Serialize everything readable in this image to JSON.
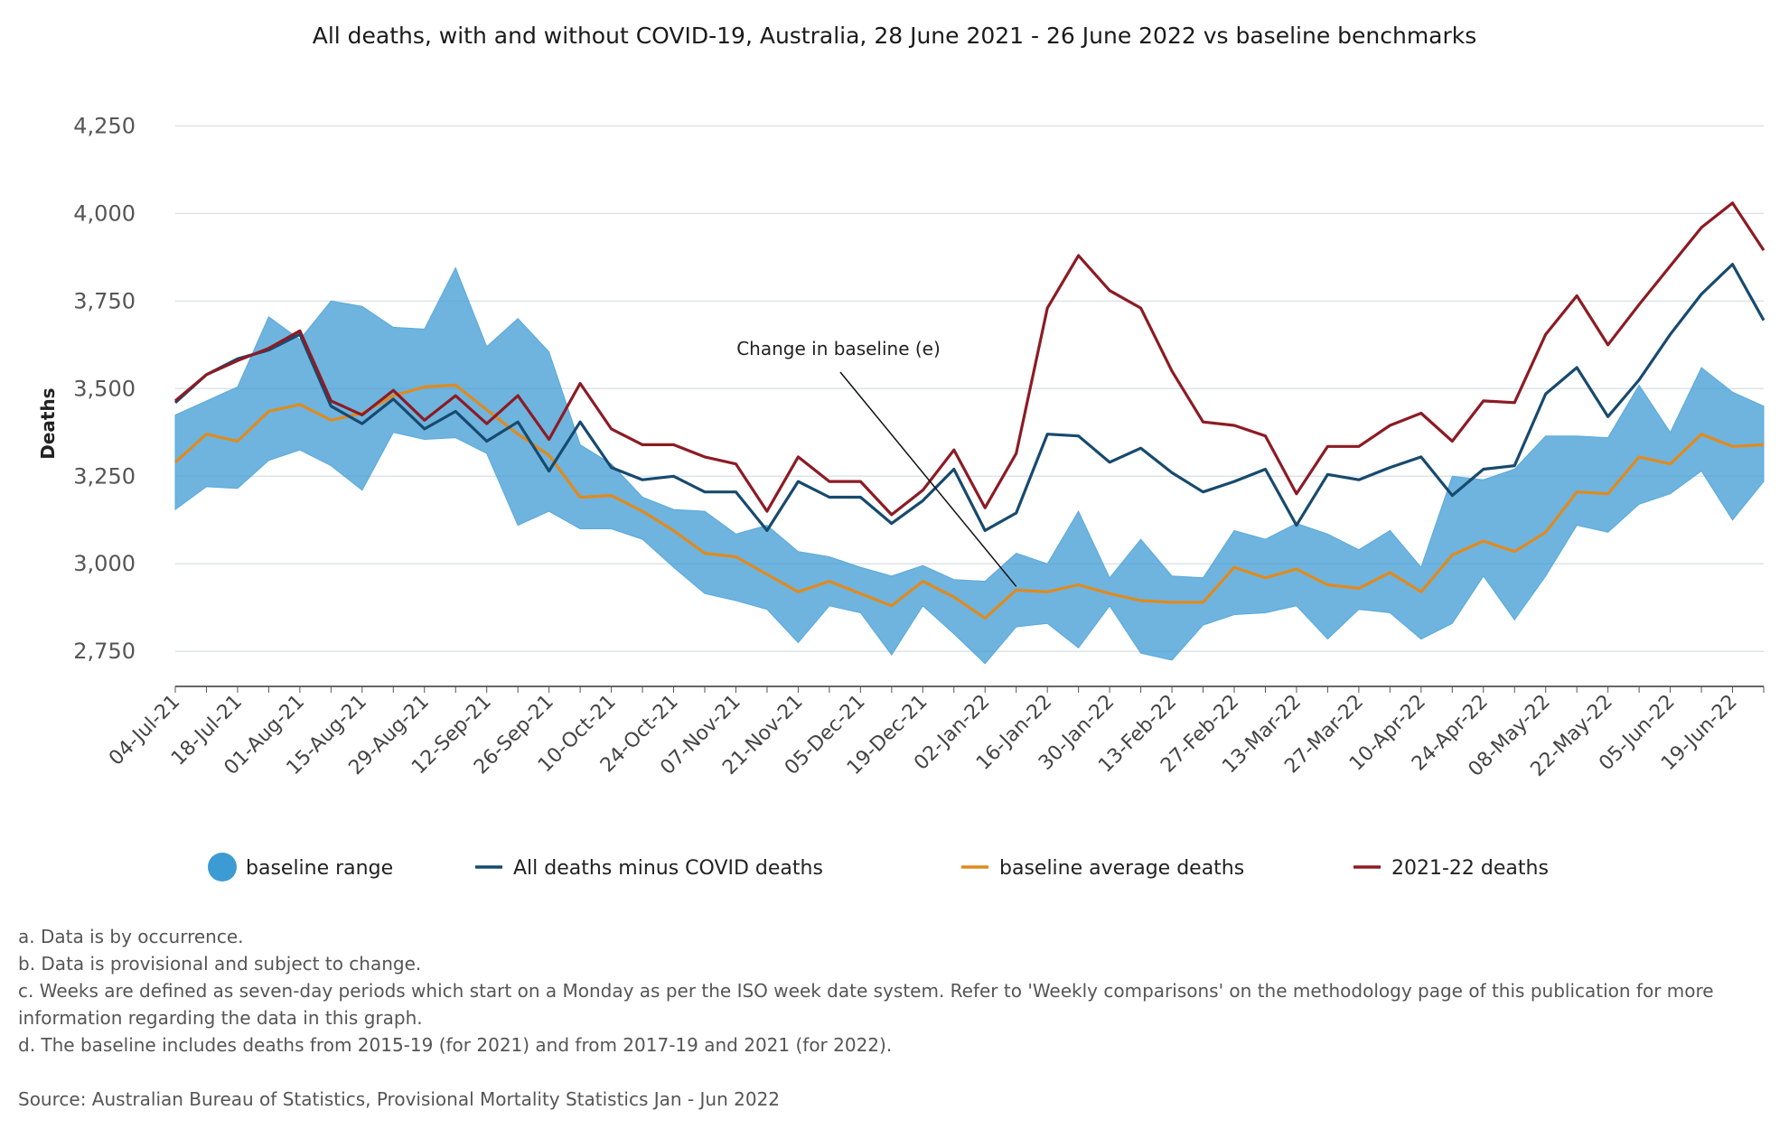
{
  "chart_data": {
    "type": "line",
    "title": "All deaths, with and without COVID-19, Australia, 28 June 2021 - 26 June 2022 vs baseline benchmarks",
    "ylabel": "Deaths",
    "ylim": [
      2650,
      4300
    ],
    "yticks": [
      2750,
      3000,
      3250,
      3500,
      3750,
      4000,
      4250
    ],
    "ytick_labels": [
      "2,750",
      "3,000",
      "3,250",
      "3,500",
      "3,750",
      "4,000",
      "4,250"
    ],
    "grid": true,
    "legend_position": "bottom",
    "x": [
      "04-Jul-21",
      "11-Jul-21",
      "18-Jul-21",
      "25-Jul-21",
      "01-Aug-21",
      "08-Aug-21",
      "15-Aug-21",
      "22-Aug-21",
      "29-Aug-21",
      "05-Sep-21",
      "12-Sep-21",
      "19-Sep-21",
      "26-Sep-21",
      "03-Oct-21",
      "10-Oct-21",
      "17-Oct-21",
      "24-Oct-21",
      "31-Oct-21",
      "07-Nov-21",
      "14-Nov-21",
      "21-Nov-21",
      "28-Nov-21",
      "05-Dec-21",
      "12-Dec-21",
      "19-Dec-21",
      "26-Dec-21",
      "02-Jan-22",
      "09-Jan-22",
      "16-Jan-22",
      "23-Jan-22",
      "30-Jan-22",
      "06-Feb-22",
      "13-Feb-22",
      "20-Feb-22",
      "27-Feb-22",
      "06-Mar-22",
      "13-Mar-22",
      "20-Mar-22",
      "27-Mar-22",
      "03-Apr-22",
      "10-Apr-22",
      "17-Apr-22",
      "24-Apr-22",
      "01-May-22",
      "08-May-22",
      "15-May-22",
      "22-May-22",
      "29-May-22",
      "05-Jun-22",
      "12-Jun-22",
      "19-Jun-22",
      "26-Jun-22"
    ],
    "x_tick_labels": [
      "04-Jul-21",
      "18-Jul-21",
      "01-Aug-21",
      "15-Aug-21",
      "29-Aug-21",
      "12-Sep-21",
      "26-Sep-21",
      "10-Oct-21",
      "24-Oct-21",
      "07-Nov-21",
      "21-Nov-21",
      "05-Dec-21",
      "19-Dec-21",
      "02-Jan-22",
      "16-Jan-22",
      "30-Jan-22",
      "13-Feb-22",
      "27-Feb-22",
      "13-Mar-22",
      "27-Mar-22",
      "10-Apr-22",
      "24-Apr-22",
      "08-May-22",
      "22-May-22",
      "05-Jun-22",
      "19-Jun-22"
    ],
    "range": {
      "name": "baseline range",
      "color": "#3d9bd4",
      "upper": [
        3425,
        3465,
        3505,
        3705,
        3640,
        3750,
        3735,
        3675,
        3670,
        3845,
        3620,
        3700,
        3605,
        3340,
        3285,
        3190,
        3155,
        3150,
        3085,
        3110,
        3035,
        3020,
        2990,
        2965,
        2995,
        2955,
        2950,
        3030,
        3000,
        3150,
        2960,
        3070,
        2965,
        2960,
        3095,
        3070,
        3115,
        3085,
        3040,
        3095,
        2990,
        3250,
        3240,
        3270,
        3365,
        3365,
        3360,
        3510,
        3375,
        3560,
        3490,
        3450
      ],
      "lower": [
        3155,
        3220,
        3215,
        3295,
        3325,
        3280,
        3210,
        3375,
        3355,
        3360,
        3315,
        3110,
        3150,
        3100,
        3100,
        3070,
        2990,
        2915,
        2895,
        2870,
        2775,
        2880,
        2860,
        2740,
        2880,
        2800,
        2715,
        2820,
        2830,
        2760,
        2880,
        2745,
        2725,
        2825,
        2855,
        2860,
        2880,
        2785,
        2870,
        2860,
        2785,
        2830,
        2965,
        2840,
        2965,
        3110,
        3090,
        3170,
        3200,
        3265,
        3125,
        3235
      ]
    },
    "series": [
      {
        "name": "All deaths minus COVID deaths",
        "color": "#174a6e",
        "values": [
          3460,
          3540,
          3585,
          3610,
          3655,
          3450,
          3400,
          3470,
          3385,
          3435,
          3350,
          3405,
          3265,
          3405,
          3275,
          3240,
          3250,
          3205,
          3205,
          3095,
          3235,
          3190,
          3190,
          3115,
          3180,
          3270,
          3095,
          3145,
          3370,
          3365,
          3290,
          3330,
          3260,
          3205,
          3235,
          3270,
          3110,
          3255,
          3240,
          3275,
          3305,
          3195,
          3270,
          3280,
          3485,
          3560,
          3420,
          3525,
          3655,
          3770,
          3855,
          3695
        ]
      },
      {
        "name": "baseline average deaths",
        "color": "#e08a1e",
        "values": [
          3290,
          3370,
          3350,
          3435,
          3455,
          3410,
          3430,
          3480,
          3505,
          3510,
          3440,
          3370,
          3310,
          3190,
          3195,
          3150,
          3095,
          3030,
          3020,
          2970,
          2920,
          2950,
          2915,
          2880,
          2950,
          2905,
          2845,
          2925,
          2920,
          2940,
          2915,
          2895,
          2890,
          2890,
          2990,
          2960,
          2985,
          2940,
          2930,
          2975,
          2920,
          3025,
          3065,
          3035,
          3090,
          3205,
          3200,
          3305,
          3285,
          3370,
          3335,
          3340
        ]
      },
      {
        "name": "2021-22 deaths",
        "color": "#8c1b24",
        "values": [
          3465,
          3540,
          3580,
          3615,
          3665,
          3465,
          3425,
          3495,
          3410,
          3480,
          3400,
          3480,
          3355,
          3515,
          3385,
          3340,
          3340,
          3305,
          3285,
          3150,
          3305,
          3235,
          3235,
          3140,
          3210,
          3325,
          3160,
          3315,
          3730,
          3880,
          3780,
          3730,
          3550,
          3405,
          3395,
          3365,
          3200,
          3335,
          3335,
          3395,
          3430,
          3350,
          3465,
          3460,
          3655,
          3765,
          3625,
          3740,
          3850,
          3960,
          4030,
          3895
        ]
      }
    ],
    "annotation": {
      "text": "Change in baseline (e)",
      "x": "09-Jan-22",
      "y": 2925
    }
  },
  "legend": {
    "items": [
      {
        "label": "baseline range",
        "color": "#3d9bd4",
        "shape": "circle"
      },
      {
        "label": "All deaths minus COVID deaths",
        "color": "#174a6e",
        "shape": "line"
      },
      {
        "label": "baseline average deaths",
        "color": "#e08a1e",
        "shape": "line"
      },
      {
        "label": "2021-22 deaths",
        "color": "#8c1b24",
        "shape": "line"
      }
    ]
  },
  "notes": [
    "a. Data is by occurrence.",
    "b. Data is provisional and subject to change.",
    "c. Weeks are defined as seven-day periods which start on a Monday as per the ISO week date system. Refer to 'Weekly comparisons' on the methodology page of this publication for more information regarding the data in this graph.",
    "d. The baseline includes deaths from 2015-19 (for 2021) and from 2017-19 and 2021 (for 2022)."
  ],
  "source": "Source: Australian Bureau of Statistics, Provisional Mortality Statistics Jan - Jun 2022"
}
